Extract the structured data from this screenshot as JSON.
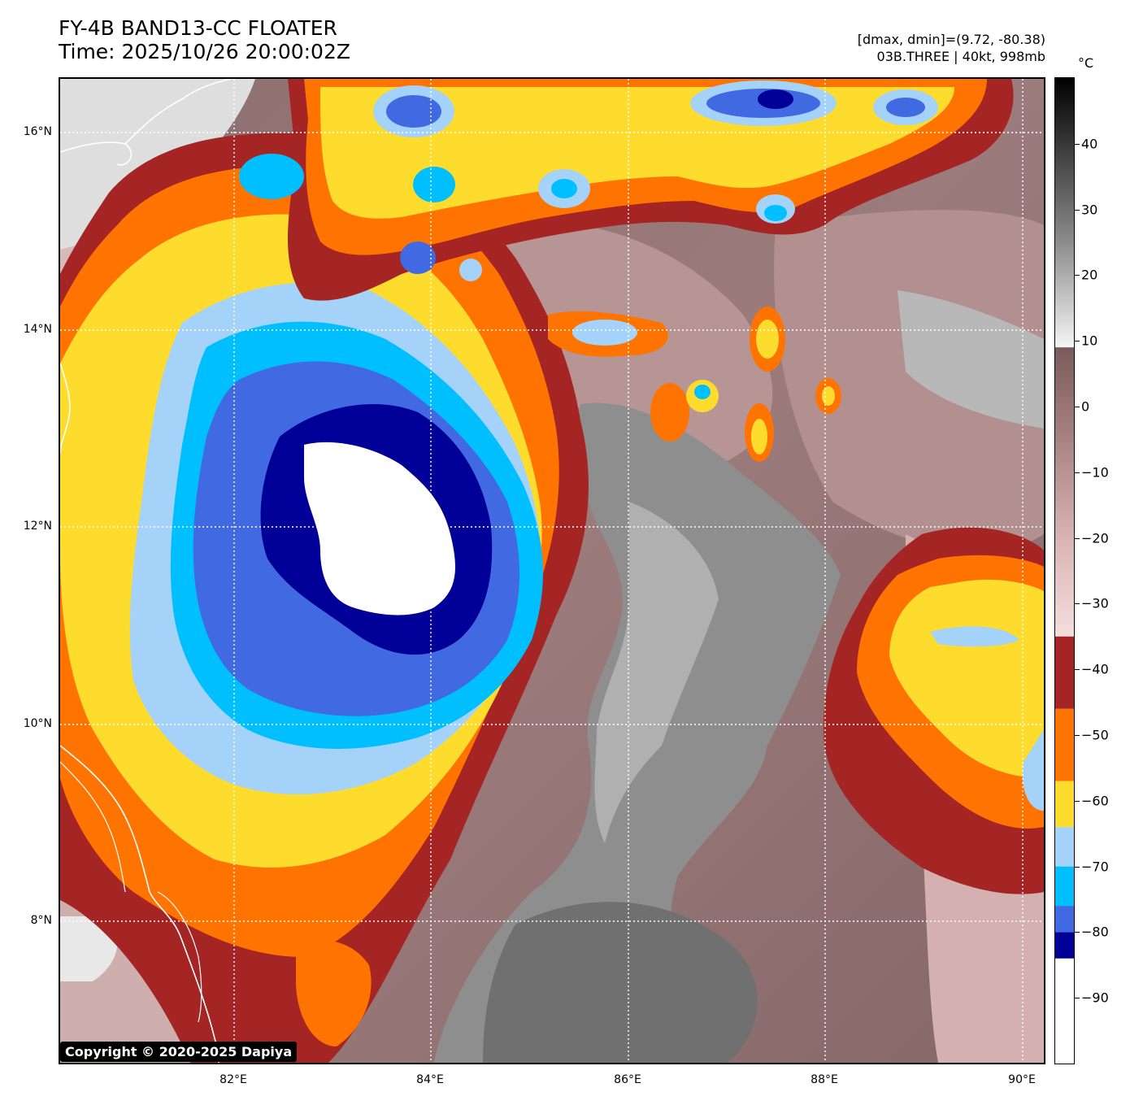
{
  "header": {
    "title_line1": "FY-4B BAND13-CC FLOATER",
    "title_line2": "Time: 2025/10/26 20:00:02Z",
    "info_line1": "[dmax, dmin]=(9.72, -80.38)",
    "info_line2": "03B.THREE | 40kt, 998mb"
  },
  "map": {
    "lat_labels": [
      "16°N",
      "14°N",
      "12°N",
      "10°N",
      "8°N"
    ],
    "lon_labels": [
      "82°E",
      "84°E",
      "86°E",
      "88°E",
      "90°E"
    ],
    "extent": {
      "lon_min": 80.23,
      "lon_max": 90.23,
      "lat_min": 6.47,
      "lat_max": 16.47
    },
    "gridlines": true,
    "copyright": "Copyright © 2020-2025 Dapiya"
  },
  "colorbar": {
    "unit": "°C",
    "labels": [
      "40",
      "30",
      "20",
      "10",
      "0",
      "−10",
      "−20",
      "−30",
      "−40",
      "−50",
      "−60",
      "−70",
      "−80",
      "−90"
    ],
    "tick_values": [
      40,
      30,
      20,
      10,
      0,
      -10,
      -20,
      -30,
      -40,
      -50,
      -60,
      -70,
      -80,
      -90
    ],
    "range": [
      -100,
      50
    ],
    "bands": [
      {
        "from": -100,
        "to": -84,
        "color": "#ffffff"
      },
      {
        "from": -84,
        "to": -80,
        "color": "#000099"
      },
      {
        "from": -80,
        "to": -76,
        "color": "#4169e1"
      },
      {
        "from": -76,
        "to": -70,
        "color": "#00bfff"
      },
      {
        "from": -70,
        "to": -64,
        "color": "#a4d2f8"
      },
      {
        "from": -64,
        "to": -57,
        "color": "#fddc2e"
      },
      {
        "from": -57,
        "to": -46,
        "color": "#ff7300"
      },
      {
        "from": -46,
        "to": -35,
        "color": "#a52525"
      }
    ],
    "gradient_stops": [
      {
        "value": -35,
        "color": "#f4dede"
      },
      {
        "value": -20,
        "color": "#d9b3b3"
      },
      {
        "value": -5,
        "color": "#a98282"
      },
      {
        "value": 9,
        "color": "#7a5b5b"
      },
      {
        "value": 9.01,
        "color": "#f5f5f5"
      },
      {
        "value": 25,
        "color": "#8c8c8c"
      },
      {
        "value": 50,
        "color": "#000000"
      }
    ]
  },
  "colors": {
    "land_brown": "#8a6a6a",
    "clear_gray": "#8f8f8f",
    "coastline": "#ffffff"
  }
}
